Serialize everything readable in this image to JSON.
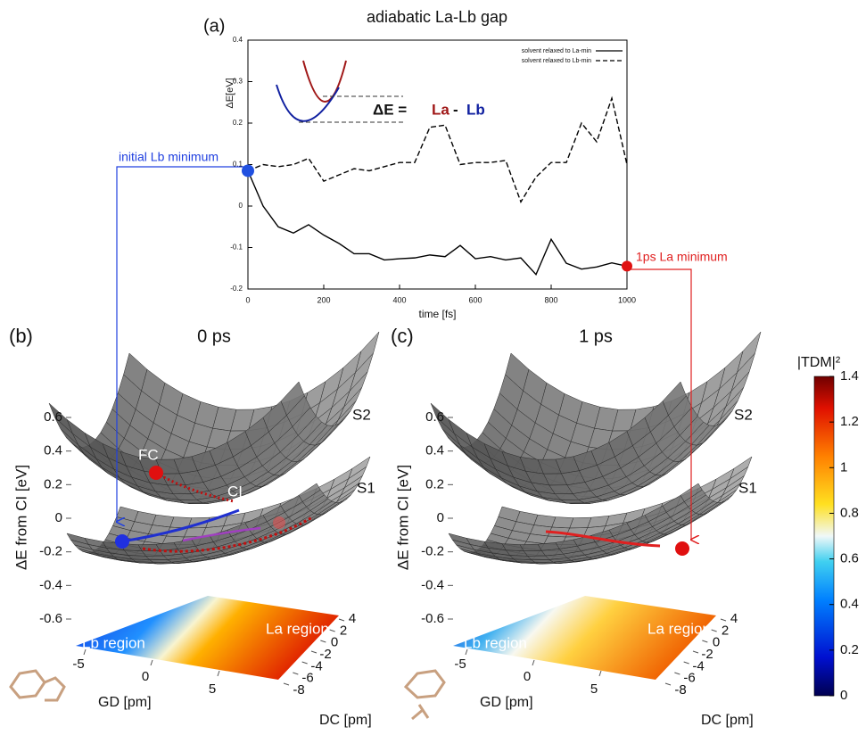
{
  "chart_data": [
    {
      "type": "line",
      "panel": "(a)",
      "title": "adiabatic La-Lb gap",
      "xlabel": "time [fs]",
      "ylabel": "ΔE[eV]",
      "x": [
        0,
        40,
        80,
        120,
        160,
        200,
        240,
        280,
        320,
        360,
        400,
        440,
        480,
        520,
        560,
        600,
        640,
        680,
        720,
        760,
        800,
        840,
        880,
        920,
        960,
        1000
      ],
      "series": [
        {
          "name": "solvent relaxed to La-min",
          "color": "#000000",
          "line_style": "solid",
          "values": [
            0.085,
            0.0,
            -0.05,
            -0.065,
            -0.045,
            -0.07,
            -0.09,
            -0.115,
            -0.115,
            -0.13,
            -0.127,
            -0.125,
            -0.118,
            -0.122,
            -0.095,
            -0.127,
            -0.122,
            -0.13,
            -0.125,
            -0.165,
            -0.08,
            -0.138,
            -0.152,
            -0.147,
            -0.137,
            -0.145
          ]
        },
        {
          "name": "solvent relaxed to Lb-min",
          "color": "#000000",
          "line_style": "dashed",
          "values": [
            0.085,
            0.1,
            0.095,
            0.1,
            0.115,
            0.06,
            0.075,
            0.09,
            0.085,
            0.095,
            0.105,
            0.105,
            0.19,
            0.195,
            0.1,
            0.105,
            0.105,
            0.11,
            0.01,
            0.07,
            0.105,
            0.105,
            0.2,
            0.155,
            0.26,
            0.1
          ]
        }
      ],
      "xlim": [
        0,
        1000
      ],
      "xticks": [
        0,
        200,
        400,
        600,
        800,
        1000
      ],
      "ylim": [
        -0.2,
        0.4
      ],
      "yticks": [
        -0.2,
        -0.1,
        0,
        0.1,
        0.2,
        0.3,
        0.4
      ],
      "legend": "upper right",
      "annotations": {
        "start": "initial Lb minimum",
        "end": "1ps La minimum",
        "inset": [
          "ΔE =",
          "La",
          "-",
          "Lb"
        ]
      }
    },
    {
      "type": "surface",
      "panel": "(b)",
      "title": "0 ps",
      "zlabel": "ΔE from CI [eV]",
      "zlim": [
        -0.6,
        0.6
      ],
      "zticks": [
        -0.6,
        -0.4,
        -0.2,
        0,
        0.2,
        0.4,
        0.6
      ],
      "xlabel": "GD [pm]",
      "xlim": [
        -5,
        5
      ],
      "xticks": [
        -5,
        0,
        5
      ],
      "ylabel": "DC [pm]",
      "ylim": [
        -8,
        4
      ],
      "yticks": [
        -8,
        -6,
        -4,
        -2,
        0,
        2,
        4
      ],
      "surfaces": [
        "S2",
        "S1"
      ],
      "points": [
        "FC",
        "CI"
      ],
      "regions": [
        "Lb region",
        "La region"
      ]
    },
    {
      "type": "surface",
      "panel": "(c)",
      "title": "1 ps",
      "zlabel": "ΔE from CI [eV]",
      "zlim": [
        -0.6,
        0.6
      ],
      "zticks": [
        -0.6,
        -0.4,
        -0.2,
        0,
        0.2,
        0.4,
        0.6
      ],
      "xlabel": "GD [pm]",
      "xlim": [
        -5,
        5
      ],
      "xticks": [
        -5,
        0,
        5
      ],
      "ylabel": "DC [pm]",
      "ylim": [
        -8,
        4
      ],
      "yticks": [
        -8,
        -6,
        -4,
        -2,
        0,
        2,
        4
      ],
      "surfaces": [
        "S2",
        "S1"
      ],
      "regions": [
        "Lb region",
        "La region"
      ]
    },
    {
      "type": "colorbar",
      "label": "|TDM|²",
      "lim": [
        0,
        1.4
      ],
      "ticks": [
        0,
        0.2,
        0.4,
        0.6,
        0.8,
        1,
        1.2,
        1.4
      ]
    }
  ]
}
